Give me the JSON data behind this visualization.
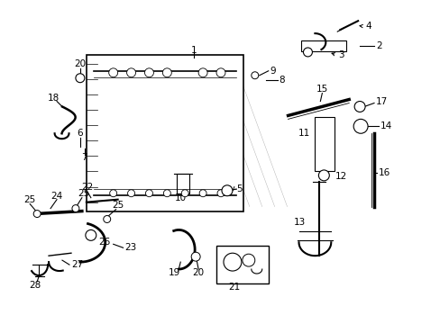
{
  "background_color": "#ffffff",
  "fig_width": 4.89,
  "fig_height": 3.6,
  "dpi": 100,
  "line_color": "#000000",
  "text_color": "#000000",
  "font_size": 7.5
}
